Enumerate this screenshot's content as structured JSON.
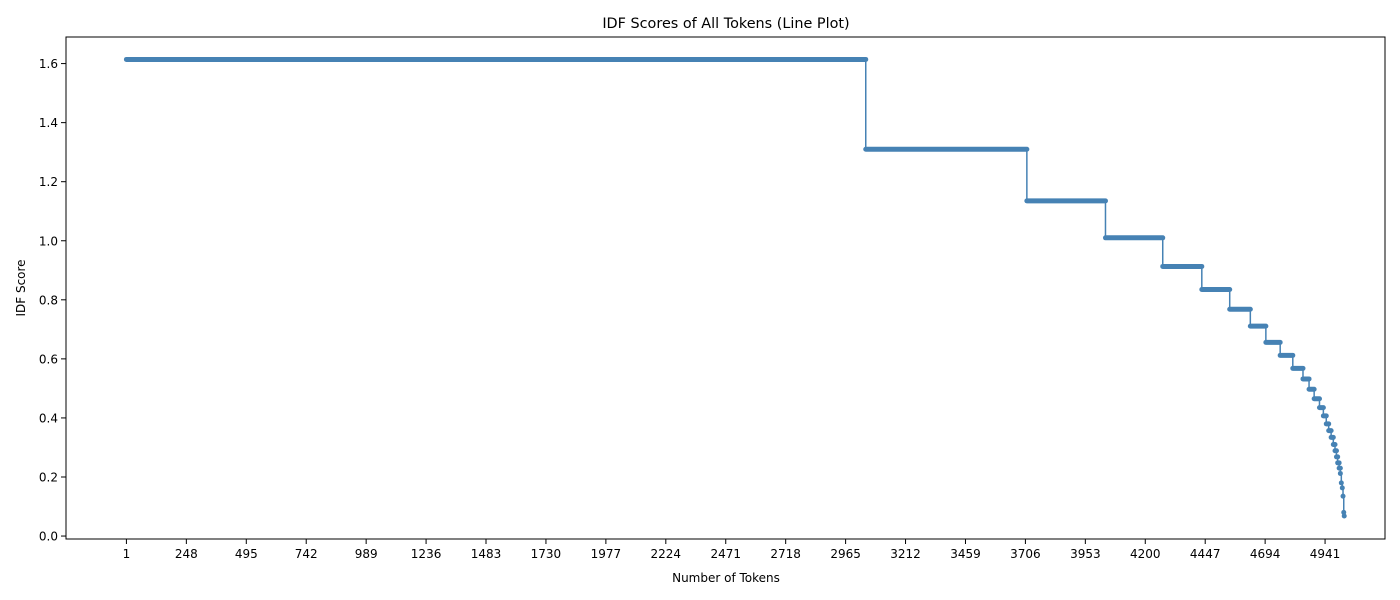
{
  "chart_data": {
    "type": "line",
    "title": "IDF Scores of All Tokens (Line Plot)",
    "xlabel": "Number of Tokens",
    "ylabel": "IDF Score",
    "xlim": [
      -248,
      5188
    ],
    "ylim": [
      -0.01,
      1.69
    ],
    "x_ticks": [
      "1",
      "248",
      "495",
      "742",
      "989",
      "1236",
      "1483",
      "1730",
      "1977",
      "2224",
      "2471",
      "2718",
      "2965",
      "3212",
      "3459",
      "3706",
      "3953",
      "4200",
      "4447",
      "4694",
      "4941"
    ],
    "y_ticks": [
      "0.0",
      "0.2",
      "0.4",
      "0.6",
      "0.8",
      "1.0",
      "1.2",
      "1.4",
      "1.6"
    ],
    "grid": false,
    "color": "#4682b4",
    "series": [
      {
        "name": "",
        "steps": [
          {
            "x_start": 1,
            "x_end": 3048,
            "y": 1.614
          },
          {
            "x_start": 3048,
            "x_end": 3712,
            "y": 1.31
          },
          {
            "x_start": 3712,
            "x_end": 4036,
            "y": 1.135
          },
          {
            "x_start": 4036,
            "x_end": 4272,
            "y": 1.01
          },
          {
            "x_start": 4272,
            "x_end": 4433,
            "y": 0.913
          },
          {
            "x_start": 4433,
            "x_end": 4548,
            "y": 0.835
          },
          {
            "x_start": 4548,
            "x_end": 4633,
            "y": 0.768
          },
          {
            "x_start": 4633,
            "x_end": 4697,
            "y": 0.711
          },
          {
            "x_start": 4697,
            "x_end": 4756,
            "y": 0.656
          },
          {
            "x_start": 4756,
            "x_end": 4808,
            "y": 0.612
          },
          {
            "x_start": 4808,
            "x_end": 4850,
            "y": 0.568
          },
          {
            "x_start": 4850,
            "x_end": 4875,
            "y": 0.532
          },
          {
            "x_start": 4875,
            "x_end": 4896,
            "y": 0.497
          },
          {
            "x_start": 4896,
            "x_end": 4918,
            "y": 0.465
          },
          {
            "x_start": 4918,
            "x_end": 4934,
            "y": 0.435
          },
          {
            "x_start": 4934,
            "x_end": 4946,
            "y": 0.407
          },
          {
            "x_start": 4946,
            "x_end": 4956,
            "y": 0.38
          },
          {
            "x_start": 4956,
            "x_end": 4966,
            "y": 0.357
          },
          {
            "x_start": 4966,
            "x_end": 4975,
            "y": 0.334
          },
          {
            "x_start": 4975,
            "x_end": 4982,
            "y": 0.31
          },
          {
            "x_start": 4982,
            "x_end": 4988,
            "y": 0.289
          },
          {
            "x_start": 4988,
            "x_end": 4993,
            "y": 0.268
          },
          {
            "x_start": 4993,
            "x_end": 4999,
            "y": 0.248
          },
          {
            "x_start": 4999,
            "x_end": 5004,
            "y": 0.23
          },
          {
            "x_start": 5004,
            "x_end": 5008,
            "y": 0.212
          },
          {
            "x_start": 5008,
            "x_end": 5012,
            "y": 0.18
          },
          {
            "x_start": 5012,
            "x_end": 5015,
            "y": 0.163
          },
          {
            "x_start": 5015,
            "x_end": 5018,
            "y": 0.135
          },
          {
            "x_start": 5018,
            "x_end": 5020,
            "y": 0.08
          },
          {
            "x_start": 5020,
            "x_end": 5021,
            "y": 0.068
          }
        ]
      }
    ]
  }
}
